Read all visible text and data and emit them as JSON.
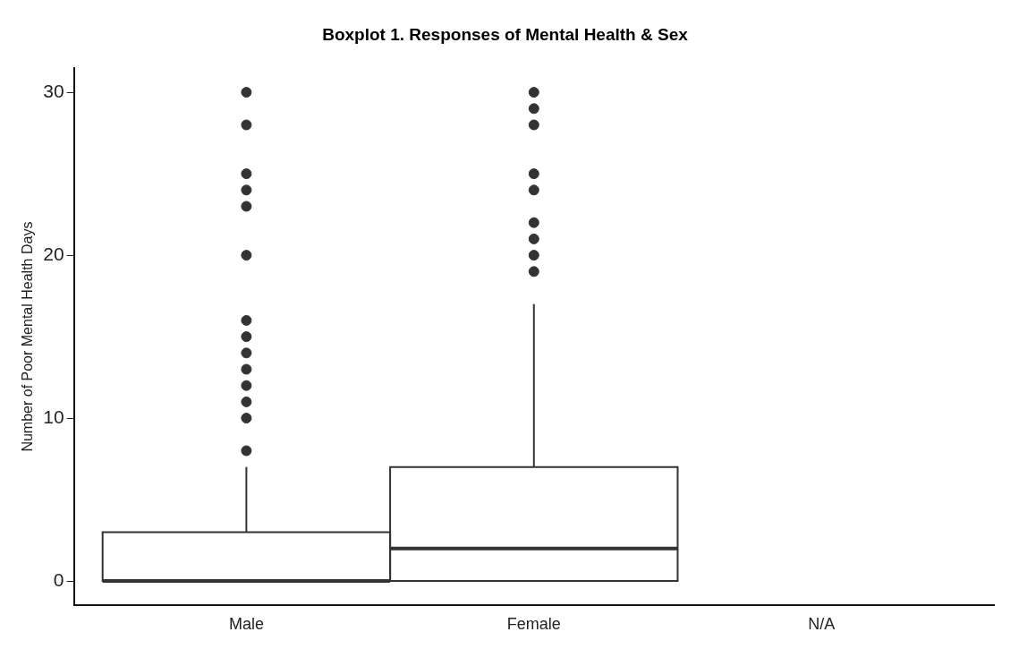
{
  "chart_data": {
    "type": "box",
    "title": "Boxplot 1. Responses of Mental Health & Sex",
    "ylabel": "Number of Poor Mental Health Days",
    "categories": [
      "Male",
      "Female",
      "N/A"
    ],
    "boxes": [
      {
        "low": 0,
        "q1": 0,
        "median": 0,
        "q3": 3,
        "high": 7,
        "outliers": [
          8,
          10,
          11,
          12,
          13,
          14,
          15,
          16,
          20,
          23,
          24,
          25,
          28,
          30
        ]
      },
      {
        "low": 0,
        "q1": 0,
        "median": 2,
        "q3": 7,
        "high": 17,
        "outliers": [
          19,
          20,
          21,
          22,
          24,
          25,
          28,
          29,
          30
        ]
      },
      null
    ],
    "color": "#333333",
    "ylim": [
      -1.5,
      31.5
    ],
    "yticks": [
      0,
      10,
      20,
      30
    ],
    "grid": false,
    "legend": false,
    "marker": "circle"
  }
}
